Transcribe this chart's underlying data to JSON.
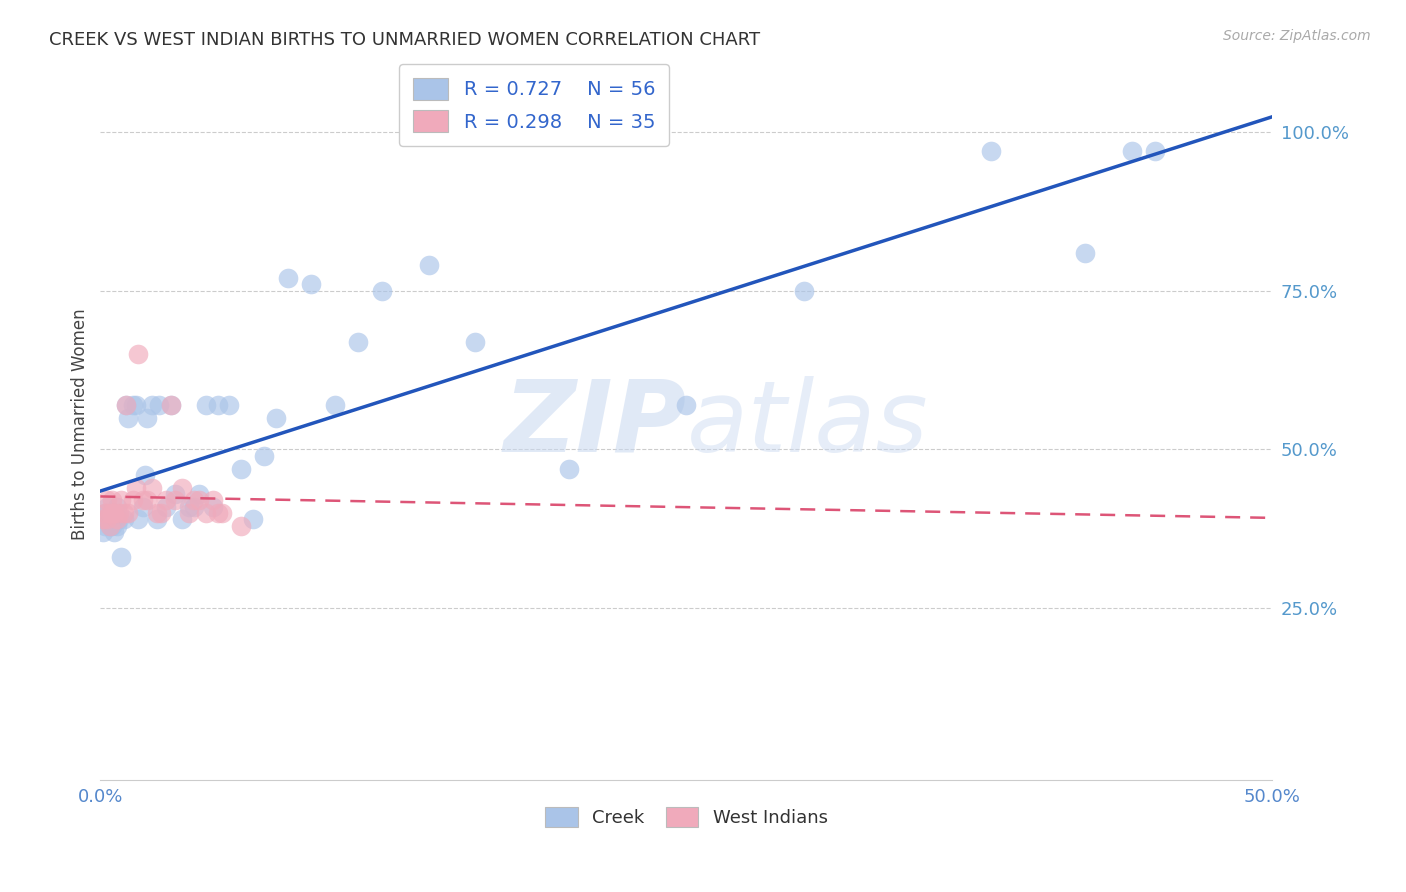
{
  "title": "CREEK VS WEST INDIAN BIRTHS TO UNMARRIED WOMEN CORRELATION CHART",
  "source": "Source: ZipAtlas.com",
  "ylabel": "Births to Unmarried Women",
  "xlim": [
    0.0,
    0.5
  ],
  "ylim": [
    -0.02,
    1.1
  ],
  "xtick_positions": [
    0.0,
    0.05,
    0.1,
    0.15,
    0.2,
    0.25,
    0.3,
    0.35,
    0.4,
    0.45,
    0.5
  ],
  "xtick_labels": [
    "0.0%",
    "",
    "",
    "",
    "",
    "",
    "",
    "",
    "",
    "",
    "50.0%"
  ],
  "ytick_positions": [
    0.25,
    0.5,
    0.75,
    1.0
  ],
  "ytick_labels": [
    "25.0%",
    "50.0%",
    "75.0%",
    "100.0%"
  ],
  "grid_color": "#cccccc",
  "background_color": "#ffffff",
  "creek_color": "#aac4e8",
  "west_indian_color": "#f0aabb",
  "creek_line_color": "#2255bb",
  "west_indian_line_color": "#dd5577",
  "creek_R": 0.727,
  "creek_N": 56,
  "west_indian_R": 0.298,
  "west_indian_N": 35,
  "watermark_zip": "ZIP",
  "watermark_atlas": "atlas",
  "legend_labels": [
    "Creek",
    "West Indians"
  ],
  "creek_x": [
    0.001,
    0.002,
    0.002,
    0.003,
    0.003,
    0.004,
    0.004,
    0.005,
    0.005,
    0.006,
    0.006,
    0.007,
    0.007,
    0.008,
    0.009,
    0.01,
    0.011,
    0.012,
    0.014,
    0.015,
    0.016,
    0.018,
    0.019,
    0.02,
    0.022,
    0.024,
    0.025,
    0.028,
    0.03,
    0.032,
    0.035,
    0.038,
    0.04,
    0.042,
    0.045,
    0.048,
    0.05,
    0.055,
    0.06,
    0.065,
    0.07,
    0.075,
    0.08,
    0.09,
    0.1,
    0.11,
    0.12,
    0.14,
    0.16,
    0.2,
    0.25,
    0.3,
    0.38,
    0.42,
    0.44,
    0.45
  ],
  "creek_y": [
    0.37,
    0.38,
    0.4,
    0.39,
    0.41,
    0.38,
    0.39,
    0.38,
    0.4,
    0.37,
    0.39,
    0.38,
    0.41,
    0.39,
    0.33,
    0.39,
    0.57,
    0.55,
    0.57,
    0.57,
    0.39,
    0.41,
    0.46,
    0.55,
    0.57,
    0.39,
    0.57,
    0.41,
    0.57,
    0.43,
    0.39,
    0.41,
    0.41,
    0.43,
    0.57,
    0.41,
    0.57,
    0.57,
    0.47,
    0.39,
    0.49,
    0.55,
    0.77,
    0.76,
    0.57,
    0.67,
    0.75,
    0.79,
    0.67,
    0.47,
    0.57,
    0.75,
    0.97,
    0.81,
    0.97,
    0.97
  ],
  "west_indian_x": [
    0.001,
    0.002,
    0.003,
    0.003,
    0.004,
    0.004,
    0.005,
    0.005,
    0.006,
    0.007,
    0.008,
    0.009,
    0.01,
    0.011,
    0.012,
    0.014,
    0.015,
    0.016,
    0.018,
    0.02,
    0.022,
    0.024,
    0.026,
    0.028,
    0.03,
    0.032,
    0.035,
    0.038,
    0.04,
    0.042,
    0.045,
    0.048,
    0.05,
    0.052,
    0.06
  ],
  "west_indian_y": [
    0.39,
    0.4,
    0.39,
    0.42,
    0.38,
    0.4,
    0.4,
    0.42,
    0.4,
    0.39,
    0.4,
    0.42,
    0.4,
    0.57,
    0.4,
    0.42,
    0.44,
    0.65,
    0.42,
    0.42,
    0.44,
    0.4,
    0.4,
    0.42,
    0.57,
    0.42,
    0.44,
    0.4,
    0.42,
    0.42,
    0.4,
    0.42,
    0.4,
    0.4,
    0.38
  ]
}
